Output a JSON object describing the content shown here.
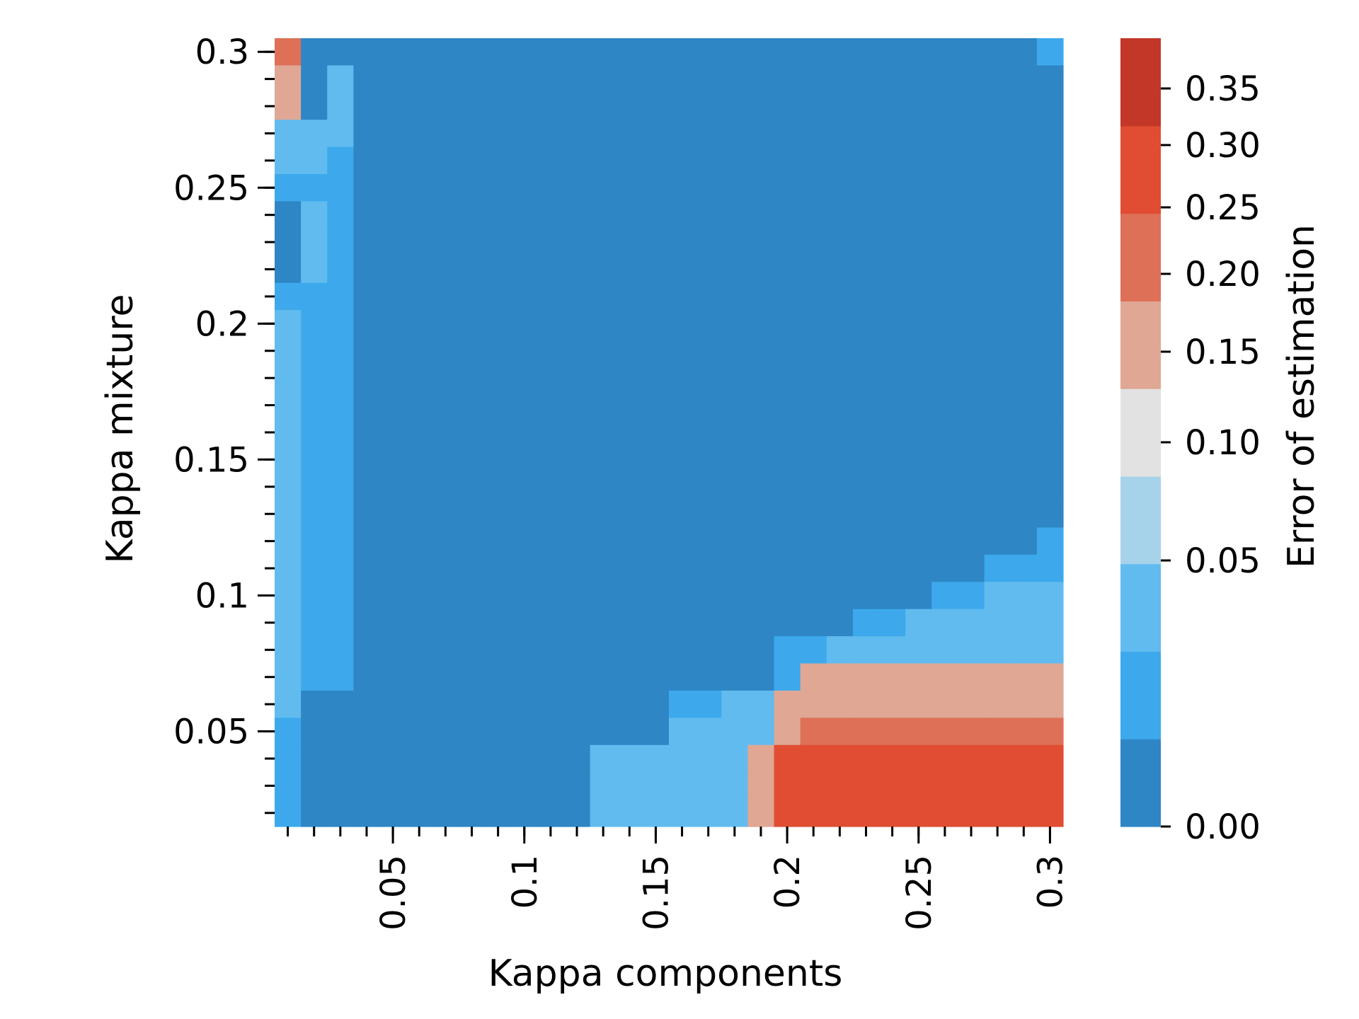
{
  "chart_data": {
    "type": "heatmap",
    "xlabel": "Kappa components",
    "ylabel": "Kappa mixture",
    "x_ticks": [
      {
        "value": 0.05,
        "label": "0.05"
      },
      {
        "value": 0.1,
        "label": "0.1"
      },
      {
        "value": 0.15,
        "label": "0.15"
      },
      {
        "value": 0.2,
        "label": "0.2"
      },
      {
        "value": 0.25,
        "label": "0.25"
      },
      {
        "value": 0.3,
        "label": "0.3"
      }
    ],
    "y_ticks": [
      {
        "value": 0.05,
        "label": "0.05"
      },
      {
        "value": 0.1,
        "label": "0.1"
      },
      {
        "value": 0.15,
        "label": "0.15"
      },
      {
        "value": 0.2,
        "label": "0.2"
      },
      {
        "value": 0.25,
        "label": "0.25"
      },
      {
        "value": 0.3,
        "label": "0.3"
      }
    ],
    "x": [
      0.01,
      0.02,
      0.03,
      0.04,
      0.05,
      0.06,
      0.07,
      0.08,
      0.09,
      0.1,
      0.11,
      0.12,
      0.13,
      0.14,
      0.15,
      0.16,
      0.17,
      0.18,
      0.19,
      0.2,
      0.21,
      0.22,
      0.23,
      0.24,
      0.25,
      0.26,
      0.27,
      0.28,
      0.29,
      0.3
    ],
    "y_top_to_bottom": [
      0.3,
      0.29,
      0.28,
      0.27,
      0.26,
      0.25,
      0.24,
      0.23,
      0.22,
      0.21,
      0.2,
      0.19,
      0.18,
      0.17,
      0.16,
      0.15,
      0.14,
      0.13,
      0.12,
      0.11,
      0.1,
      0.09,
      0.08,
      0.07,
      0.06,
      0.05,
      0.04,
      0.03,
      0.02
    ],
    "color_index_rows": [
      "711111111111111111111111111112",
      "613111111111111111111111111111",
      "613111111111111111111111111111",
      "333111111111111111111111111111",
      "332111111111111111111111111111",
      "222111111111111111111111111111",
      "132111111111111111111111111111",
      "132111111111111111111111111111",
      "132111111111111111111111111111",
      "222111111111111111111111111111",
      "322111111111111111111111111111",
      "322111111111111111111111111111",
      "322111111111111111111111111111",
      "322111111111111111111111111111",
      "322111111111111111111111111111",
      "322111111111111111111111111111",
      "322111111111111111111111111111",
      "322111111111111111111111111111",
      "322111111111111111111111111112",
      "322111111111111111111111111222",
      "322111111111111111111111122333",
      "322111111111111111111122333333",
      "322111111111111111122333333333",
      "322111111111111111126666666666",
      "311111111111111223366666666666",
      "211111111111111333367777777777",
      "211111111111333333688888888888",
      "211111111111333333688888888888",
      "211111111111333333688888888888"
    ],
    "colorbar": {
      "label": "Error of estimation",
      "vmin": 0.0,
      "vmax": 0.38,
      "bin_colors": [
        "#2e86c5",
        "#3da9ec",
        "#61bbef",
        "#a7d3ea",
        "#e2e2e2",
        "#e0a795",
        "#dd7057",
        "#e04d33",
        "#c23728"
      ],
      "ticks": [
        {
          "value": 0.0,
          "label": "0.00"
        },
        {
          "value": 0.05,
          "label": "0.05"
        },
        {
          "value": 0.1,
          "label": "0.10"
        },
        {
          "value": 0.15,
          "label": "0.15"
        },
        {
          "value": 0.2,
          "label": "0.20"
        },
        {
          "value": 0.25,
          "label": "0.25"
        },
        {
          "value": 0.3,
          "label": "0.30"
        },
        {
          "value": 0.35,
          "label": "0.35"
        }
      ]
    }
  }
}
